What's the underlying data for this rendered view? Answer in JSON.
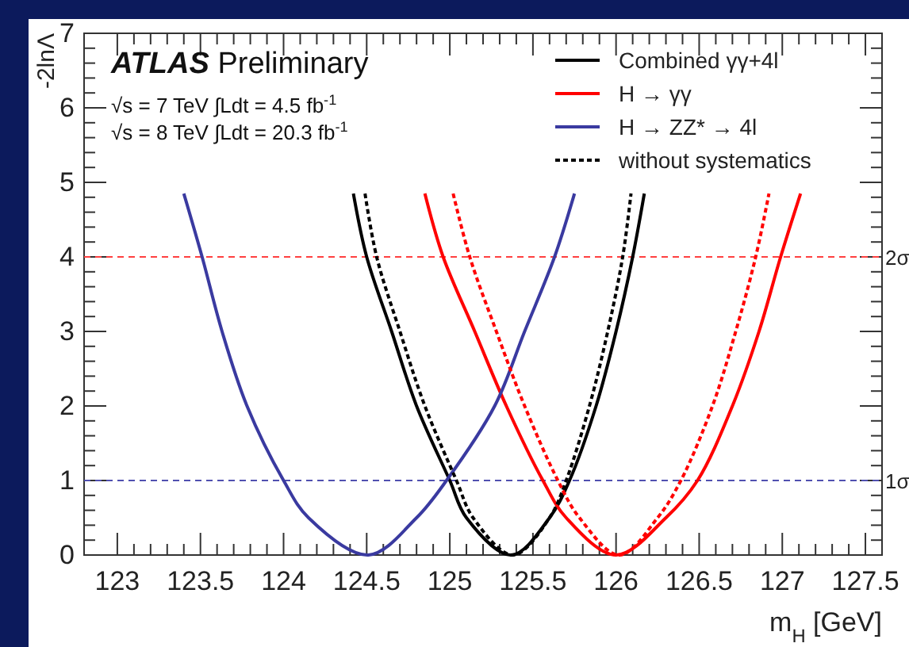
{
  "chart_data": {
    "type": "line",
    "xlabel": "m$_{H}$ [GeV]",
    "ylabel": "-2lnΛ",
    "annotations": [
      "ATLAS Preliminary",
      "√s = 7 TeV ∫Ldt = 4.5 fb$^{-1}$",
      "√s = 8 TeV ∫Ldt = 20.3 fb$^{-1}$"
    ],
    "xlim": [
      122.8,
      127.6
    ],
    "ylim": [
      0,
      7
    ],
    "xticks": [
      123,
      {
        "value": 123.1,
        "label": null
      },
      {
        "value": 123.2,
        "label": null
      },
      {
        "value": 123.3,
        "label": null
      },
      {
        "value": 123.4,
        "label": null
      },
      123.5,
      {
        "value": 123.6,
        "label": null
      },
      {
        "value": 123.7,
        "label": null
      },
      {
        "value": 123.8,
        "label": null
      },
      {
        "value": 123.9,
        "label": null
      },
      124,
      {
        "value": 124.1,
        "label": null
      },
      {
        "value": 124.2,
        "label": null
      },
      {
        "value": 124.3,
        "label": null
      },
      {
        "value": 124.4,
        "label": null
      },
      124.5,
      {
        "value": 124.6,
        "label": null
      },
      {
        "value": 124.7,
        "label": null
      },
      {
        "value": 124.8,
        "label": null
      },
      {
        "value": 124.9,
        "label": null
      },
      125,
      {
        "value": 125.1,
        "label": null
      },
      {
        "value": 125.2,
        "label": null
      },
      {
        "value": 125.3,
        "label": null
      },
      {
        "value": 125.4,
        "label": null
      },
      125.5,
      {
        "value": 125.6,
        "label": null
      },
      {
        "value": 125.7,
        "label": null
      },
      {
        "value": 125.8,
        "label": null
      },
      {
        "value": 125.9,
        "label": null
      },
      126,
      {
        "value": 126.1,
        "label": null
      },
      {
        "value": 126.2,
        "label": null
      },
      {
        "value": 126.3,
        "label": null
      },
      {
        "value": 126.4,
        "label": null
      },
      126.5,
      {
        "value": 126.6,
        "label": null
      },
      {
        "value": 126.7,
        "label": null
      },
      {
        "value": 126.8,
        "label": null
      },
      {
        "value": 126.9,
        "label": null
      },
      127,
      {
        "value": 127.1,
        "label": null
      },
      {
        "value": 127.2,
        "label": null
      },
      {
        "value": 127.3,
        "label": null
      },
      {
        "value": 127.4,
        "label": null
      },
      127.5
    ],
    "yticks": [
      0,
      {
        "value": 0.2,
        "label": null
      },
      {
        "value": 0.4,
        "label": null
      },
      {
        "value": 0.6,
        "label": null
      },
      {
        "value": 0.8,
        "label": null
      },
      1,
      {
        "value": 1.2,
        "label": null
      },
      {
        "value": 1.4,
        "label": null
      },
      {
        "value": 1.6,
        "label": null
      },
      {
        "value": 1.8,
        "label": null
      },
      2,
      {
        "value": 2.2,
        "label": null
      },
      {
        "value": 2.4,
        "label": null
      },
      {
        "value": 2.6,
        "label": null
      },
      {
        "value": 2.8,
        "label": null
      },
      3,
      {
        "value": 3.2,
        "label": null
      },
      {
        "value": 3.4,
        "label": null
      },
      {
        "value": 3.6,
        "label": null
      },
      {
        "value": 3.8,
        "label": null
      },
      4,
      {
        "value": 4.2,
        "label": null
      },
      {
        "value": 4.4,
        "label": null
      },
      {
        "value": 4.6,
        "label": null
      },
      {
        "value": 4.8,
        "label": null
      },
      5,
      {
        "value": 5.2,
        "label": null
      },
      {
        "value": 5.4,
        "label": null
      },
      {
        "value": 5.6,
        "label": null
      },
      {
        "value": 5.8,
        "label": null
      },
      6,
      {
        "value": 6.2,
        "label": null
      },
      {
        "value": 6.4,
        "label": null
      },
      {
        "value": 6.6,
        "label": null
      },
      {
        "value": 6.8,
        "label": null
      },
      7
    ],
    "grid": false,
    "legend": "top right",
    "ref_lines": [
      {
        "axis": "y",
        "value": 4,
        "label": "2σ",
        "color": "#ff4040",
        "line_style": "dashed"
      },
      {
        "axis": "y",
        "value": 1,
        "label": "1σ",
        "color": "#5050b0",
        "line_style": "dashed"
      }
    ],
    "series": [
      {
        "name": "Combined γγ+4l",
        "color": "#000000",
        "line_style": "solid",
        "x": [
          124.42,
          124.5,
          124.65,
          124.8,
          125.0,
          125.1,
          125.37,
          125.6,
          125.72,
          125.88,
          126.0,
          126.1,
          126.17
        ],
        "values": [
          4.85,
          4,
          3,
          2,
          1,
          0.5,
          0,
          0.5,
          1,
          2,
          3,
          4,
          4.85
        ]
      },
      {
        "name": "H → γγ",
        "color": "#ff0000",
        "line_style": "solid",
        "x": [
          124.85,
          124.96,
          125.15,
          125.34,
          125.56,
          125.7,
          126.0,
          126.3,
          126.49,
          126.7,
          126.86,
          126.99,
          127.11
        ],
        "values": [
          4.85,
          4,
          3,
          2,
          1,
          0.5,
          0,
          0.5,
          1,
          2,
          3,
          4,
          4.85
        ]
      },
      {
        "name": "H → ZZ* → 4l",
        "color": "#3a3aa0",
        "line_style": "solid",
        "x": [
          123.4,
          123.51,
          123.63,
          123.78,
          124.0,
          124.15,
          124.51,
          124.8,
          124.98,
          125.27,
          125.45,
          125.63,
          125.75
        ],
        "values": [
          4.85,
          4,
          3,
          2,
          1,
          0.5,
          0,
          0.5,
          1,
          2,
          3,
          4,
          4.85
        ]
      },
      {
        "name": "without systematics",
        "color": "#000000",
        "line_style": "dotted",
        "x": [
          124.49,
          124.56,
          124.7,
          124.85,
          125.04,
          125.14,
          125.38,
          125.6,
          125.7,
          125.84,
          125.95,
          126.04,
          126.09
        ],
        "values": [
          4.85,
          4,
          3,
          2,
          1,
          0.5,
          0,
          0.5,
          1,
          2,
          3,
          4,
          4.85
        ]
      },
      {
        "color": "#ff0000",
        "line_style": "dotted",
        "x": [
          125.02,
          125.12,
          125.28,
          125.45,
          125.65,
          125.78,
          126.02,
          126.25,
          126.39,
          126.58,
          126.72,
          126.84,
          126.92
        ],
        "values": [
          4.85,
          4,
          3,
          2,
          1,
          0.5,
          0,
          0.5,
          1,
          2,
          3,
          4,
          4.85
        ]
      }
    ]
  }
}
